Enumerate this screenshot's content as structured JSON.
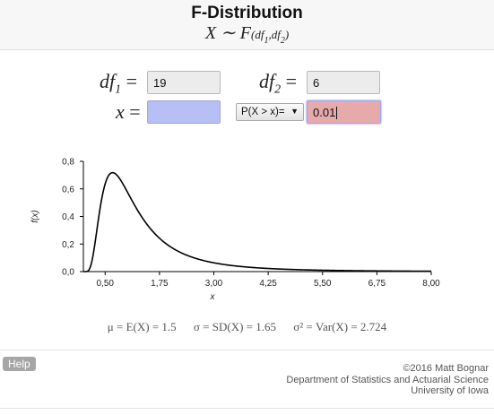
{
  "header": {
    "title": "F-Distribution",
    "subtitle_main": "X ∼ F",
    "subtitle_param": "(df",
    "subtitle_sep": ",df",
    "subtitle_close": ")",
    "sub1": "1",
    "sub2": "2"
  },
  "inputs": {
    "df1_label": "df",
    "df1_sub": "1",
    "df1_value": "19",
    "df2_label": "df",
    "df2_sub": "2",
    "df2_value": "6",
    "x_label": "x",
    "x_value": "",
    "prob_value": "0.01",
    "equals": "="
  },
  "select": {
    "selected": "P(X > x)=",
    "arrow": "▼"
  },
  "chart_data": {
    "type": "line",
    "xlabel": "x",
    "ylabel": "f(x)",
    "xlim": [
      0,
      8
    ],
    "ylim": [
      0,
      0.8
    ],
    "x_ticks": [
      "0,50",
      "1,75",
      "3,00",
      "4,25",
      "5,50",
      "6,75",
      "8,00"
    ],
    "x_tick_values": [
      0.5,
      1.75,
      3.0,
      4.25,
      5.5,
      6.75,
      8.0
    ],
    "y_ticks": [
      "0,0",
      "0,2",
      "0,4",
      "0,6",
      "0,8"
    ],
    "y_tick_values": [
      0,
      0.2,
      0.4,
      0.6,
      0.8
    ],
    "series": [
      {
        "df1": 19,
        "df2": 6,
        "stroke": "#000000"
      }
    ]
  },
  "stats": {
    "mean": "μ = E(X) = 1.5",
    "sd": "σ = SD(X) = 1.65",
    "var": "σ² = Var(X) = 2.724"
  },
  "footer": {
    "help": "Help",
    "copyright": "©2016 Matt Bognar",
    "dept": "Department of Statistics and Actuarial Science",
    "univ": "University of Iowa"
  }
}
